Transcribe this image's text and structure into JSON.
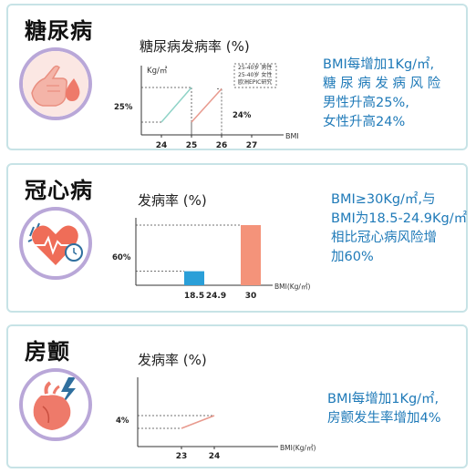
{
  "panels": [
    {
      "title": "糖尿病",
      "icon": "finger-blood-drop-icon",
      "chart_title": "糖尿病发病率 (%)",
      "desc": [
        "BMI每增加1Kg/㎡,",
        "糖 尿 病 发 病 风 险",
        "男性升高25%,",
        "女性升高24%"
      ]
    },
    {
      "title": "冠心病",
      "icon": "heart-pulse-icon",
      "chart_title": "发病率 (%)",
      "desc": [
        "BMI≥30Kg/㎡,与",
        "BMI为18.5-24.9Kg/㎡",
        "相比冠心病风险增",
        "加60%"
      ]
    },
    {
      "title": "房颤",
      "icon": "heart-lightning-icon",
      "chart_title": "发病率 (%)",
      "desc": [
        "BMI每增加1Kg/㎡,",
        "房颤发生率增加4%"
      ]
    }
  ],
  "colors": {
    "title": "#111111",
    "desc_blue": "#1f7ab8",
    "border": "#c7e3e6",
    "icon_ring": "#b9a7d8",
    "male_line": "#8fd3c7",
    "female_line": "#e89a8e",
    "bar_blue": "#2a9fd8",
    "bar_salmon": "#f4937a"
  },
  "chart_data": [
    {
      "type": "line",
      "ylabel": "Kg/㎡",
      "xlabel": "BMI",
      "x_ticks": [
        "24",
        "25",
        "26",
        "27"
      ],
      "y_annotations": [
        "25%",
        "24%"
      ],
      "legend": [
        "25-40岁 男性",
        "25-40岁 女性",
        "欧洲EPIC研究"
      ],
      "series": [
        {
          "name": "25-40岁 男性",
          "x": [
            24,
            25
          ],
          "values": [
            0,
            25
          ]
        },
        {
          "name": "25-40岁 女性",
          "x": [
            25,
            26
          ],
          "values": [
            0,
            24
          ]
        }
      ]
    },
    {
      "type": "bar",
      "xlabel": "BMI(Kg/㎡)",
      "x_ticks": [
        "18.5",
        "24.9",
        "30"
      ],
      "y_annotations": [
        "60%"
      ],
      "bars": [
        {
          "x": 18.5,
          "value": 14
        },
        {
          "x": 30,
          "value": 60
        }
      ]
    },
    {
      "type": "line",
      "xlabel": "BMI(Kg/㎡)",
      "x_ticks": [
        "23",
        "24"
      ],
      "y_annotations": [
        "4%"
      ],
      "series": [
        {
          "x": [
            23,
            24
          ],
          "values": [
            0,
            4
          ]
        }
      ]
    }
  ]
}
